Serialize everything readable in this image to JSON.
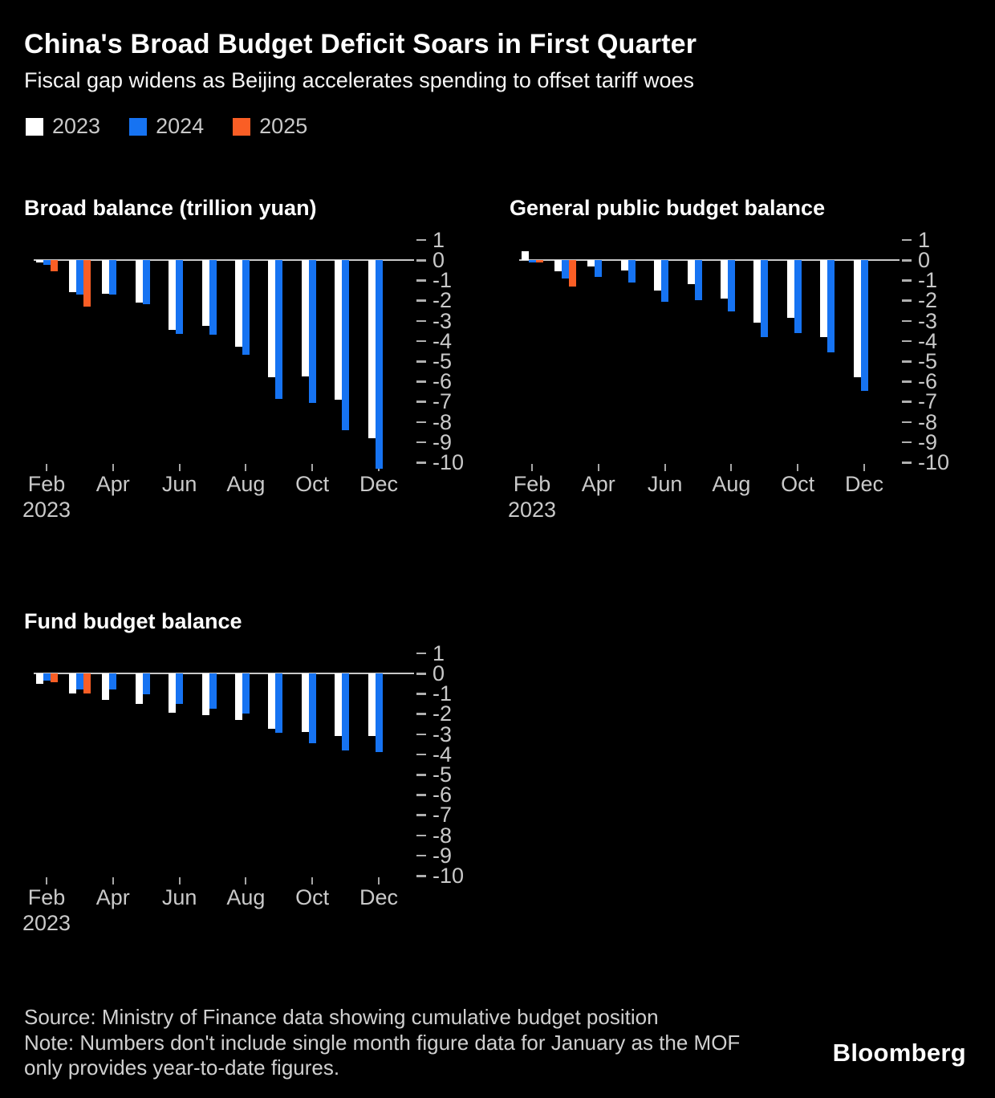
{
  "header": {
    "title": "China's Broad Budget Deficit Soars in First Quarter",
    "subtitle": "Fiscal gap widens as Beijing accelerates spending to offset tariff woes"
  },
  "legend": [
    {
      "label": "2023",
      "color": "#ffffff"
    },
    {
      "label": "2024",
      "color": "#1673f2"
    },
    {
      "label": "2025",
      "color": "#fa5e25"
    }
  ],
  "colors": {
    "background": "#000000",
    "axis_text": "#c9c9c9",
    "zero_line": "#c8c8c8",
    "white_series": "#ffffff",
    "blue_series": "#1673f2",
    "orange_series": "#fa5e25"
  },
  "chart_data": [
    {
      "type": "bar",
      "title": "Broad balance (trillion yuan)",
      "unit": "trillion yuan",
      "categories": [
        "Feb",
        "Mar",
        "Apr",
        "May",
        "Jun",
        "Jul",
        "Aug",
        "Sep",
        "Oct",
        "Nov",
        "Dec"
      ],
      "x_axis": {
        "tick_labels": [
          "Feb",
          "Apr",
          "Jun",
          "Aug",
          "Oct",
          "Dec"
        ],
        "first_tick_year": "2023"
      },
      "ylim": [
        1,
        -10
      ],
      "yticks": [
        1,
        0,
        -1,
        -2,
        -3,
        -4,
        -5,
        -6,
        -7,
        -8,
        -9,
        -10
      ],
      "grid": "zero-line-only",
      "legend_position": "top-of-page",
      "series": [
        {
          "name": "2023",
          "color": "#ffffff",
          "values": [
            -0.1,
            -1.6,
            -1.65,
            -2.1,
            -3.45,
            -3.25,
            -4.3,
            -5.8,
            -5.75,
            -6.9,
            -8.8
          ]
        },
        {
          "name": "2024",
          "color": "#1673f2",
          "values": [
            -0.25,
            -1.7,
            -1.7,
            -2.2,
            -3.65,
            -3.7,
            -4.7,
            -6.85,
            -7.05,
            -8.4,
            -10.3
          ]
        },
        {
          "name": "2025",
          "color": "#fa5e25",
          "values": [
            -0.55,
            -2.3,
            null,
            null,
            null,
            null,
            null,
            null,
            null,
            null,
            null
          ]
        }
      ]
    },
    {
      "type": "bar",
      "title": "General public budget balance",
      "unit": "trillion yuan",
      "categories": [
        "Feb",
        "Mar",
        "Apr",
        "May",
        "Jun",
        "Jul",
        "Aug",
        "Sep",
        "Oct",
        "Nov",
        "Dec"
      ],
      "x_axis": {
        "tick_labels": [
          "Feb",
          "Apr",
          "Jun",
          "Aug",
          "Oct",
          "Dec"
        ],
        "first_tick_year": "2023"
      },
      "ylim": [
        1,
        -10
      ],
      "yticks": [
        1,
        0,
        -1,
        -2,
        -3,
        -4,
        -5,
        -6,
        -7,
        -8,
        -9,
        -10
      ],
      "grid": "zero-line-only",
      "legend_position": "top-of-page",
      "series": [
        {
          "name": "2023",
          "color": "#ffffff",
          "values": [
            0.45,
            -0.55,
            -0.3,
            -0.5,
            -1.5,
            -1.2,
            -1.9,
            -3.1,
            -2.85,
            -3.8,
            -5.8
          ]
        },
        {
          "name": "2024",
          "color": "#1673f2",
          "values": [
            -0.1,
            -0.9,
            -0.85,
            -1.1,
            -2.05,
            -2.0,
            -2.55,
            -3.8,
            -3.6,
            -4.55,
            -6.45
          ]
        },
        {
          "name": "2025",
          "color": "#fa5e25",
          "values": [
            -0.1,
            -1.3,
            null,
            null,
            null,
            null,
            null,
            null,
            null,
            null,
            null
          ]
        }
      ]
    },
    {
      "type": "bar",
      "title": "Fund budget balance",
      "unit": "trillion yuan",
      "categories": [
        "Feb",
        "Mar",
        "Apr",
        "May",
        "Jun",
        "Jul",
        "Aug",
        "Sep",
        "Oct",
        "Nov",
        "Dec"
      ],
      "x_axis": {
        "tick_labels": [
          "Feb",
          "Apr",
          "Jun",
          "Aug",
          "Oct",
          "Dec"
        ],
        "first_tick_year": "2023"
      },
      "ylim": [
        1,
        -10
      ],
      "yticks": [
        1,
        0,
        -1,
        -2,
        -3,
        -4,
        -5,
        -6,
        -7,
        -8,
        -9,
        -10
      ],
      "grid": "zero-line-only",
      "legend_position": "top-of-page",
      "series": [
        {
          "name": "2023",
          "color": "#ffffff",
          "values": [
            -0.5,
            -1.0,
            -1.3,
            -1.5,
            -1.95,
            -2.05,
            -2.3,
            -2.75,
            -2.9,
            -3.1,
            -3.1
          ]
        },
        {
          "name": "2024",
          "color": "#1673f2",
          "values": [
            -0.37,
            -0.8,
            -0.8,
            -1.05,
            -1.5,
            -1.75,
            -2.0,
            -2.95,
            -3.45,
            -3.8,
            -3.9
          ]
        },
        {
          "name": "2025",
          "color": "#fa5e25",
          "values": [
            -0.45,
            -1.0,
            null,
            null,
            null,
            null,
            null,
            null,
            null,
            null,
            null
          ]
        }
      ]
    }
  ],
  "footer": {
    "source": "Source: Ministry of Finance data showing cumulative budget position",
    "note": "Note: Numbers don't include single month figure data for January as the MOF only provides year-to-date figures.",
    "brand": "Bloomberg"
  }
}
